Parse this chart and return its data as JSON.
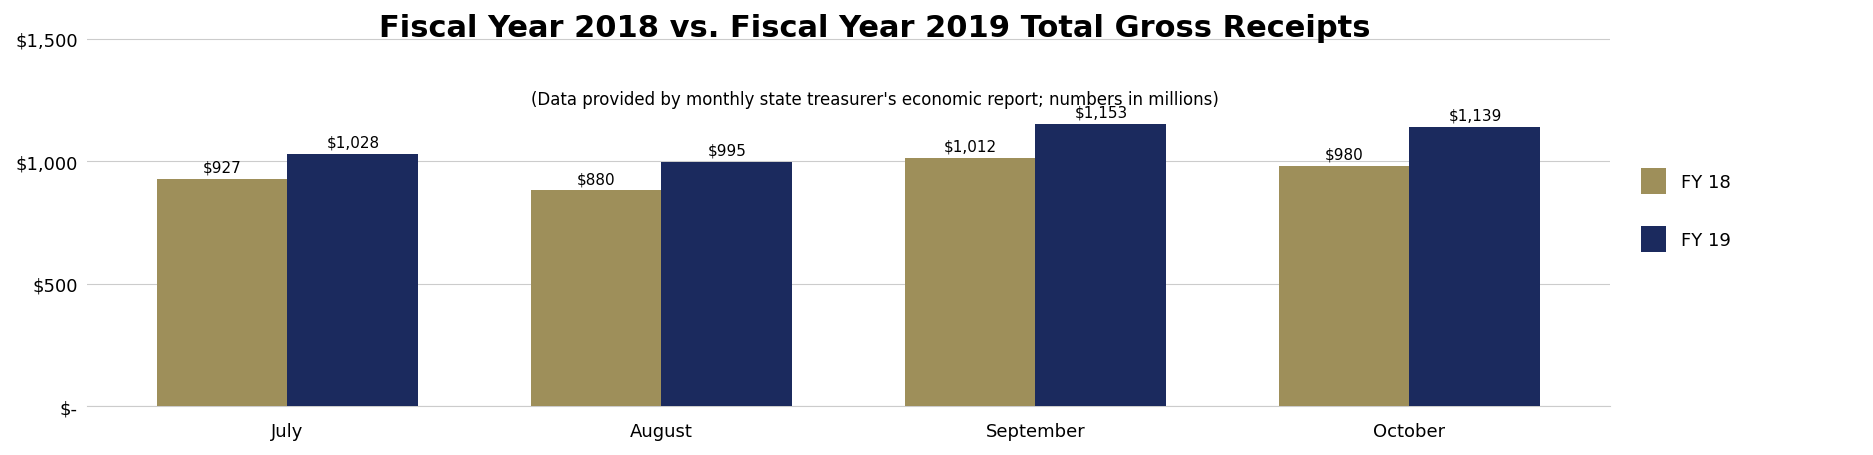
{
  "title": "Fiscal Year 2018 vs. Fiscal Year 2019 Total Gross Receipts",
  "subtitle": "(Data provided by monthly state treasurer's economic report; numbers in millions)",
  "categories": [
    "July",
    "August",
    "September",
    "October"
  ],
  "fy18_values": [
    927,
    880,
    1012,
    980
  ],
  "fy19_values": [
    1028,
    995,
    1153,
    1139
  ],
  "fy18_label": "FY 18",
  "fy19_label": "FY 19",
  "fy18_color": "#9e8f5a",
  "fy19_color": "#1b2a5e",
  "bar_width": 0.35,
  "ylim": [
    0,
    1600
  ],
  "yticks": [
    0,
    500,
    1000,
    1500
  ],
  "ytick_labels": [
    "$-",
    "$500",
    "$1,000",
    "$1,500"
  ],
  "background_color": "#ffffff",
  "grid_color": "#cccccc",
  "title_fontsize": 22,
  "subtitle_fontsize": 12,
  "tick_fontsize": 13,
  "legend_fontsize": 13,
  "annotation_fontsize": 11
}
